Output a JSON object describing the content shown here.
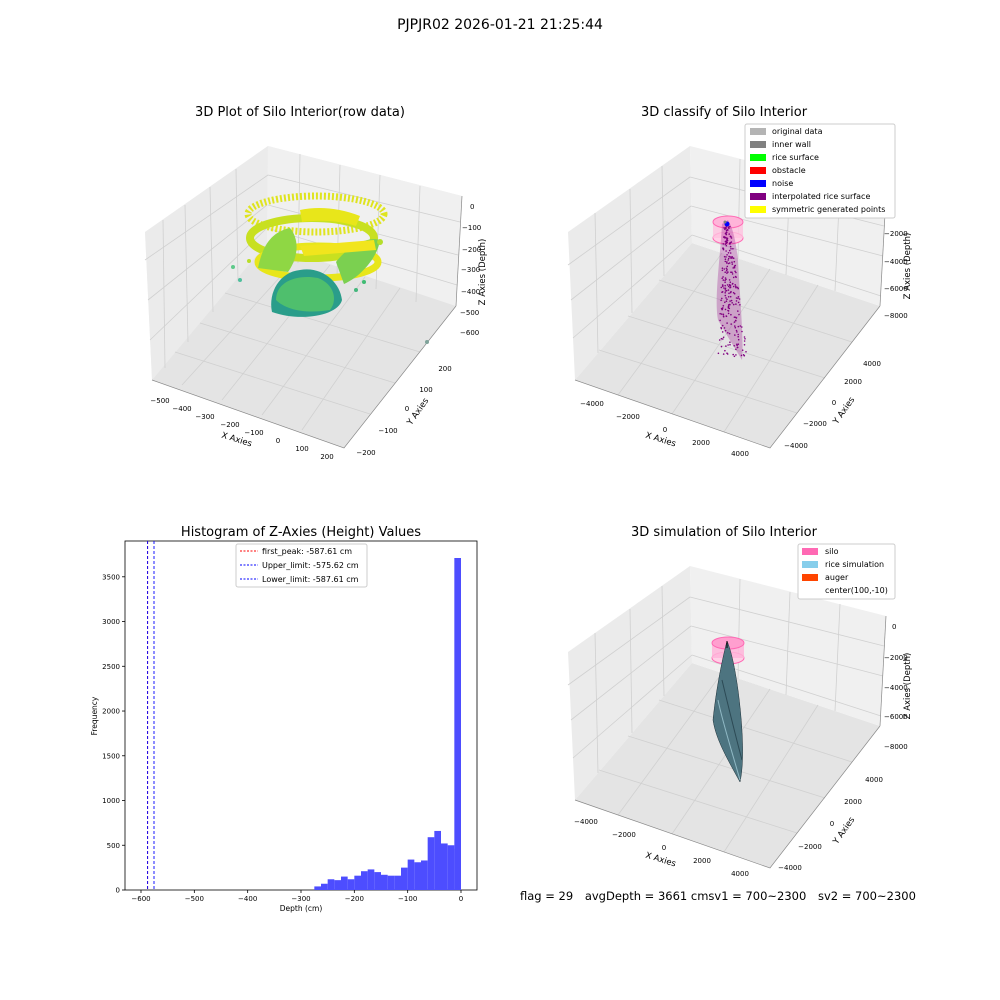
{
  "suptitle": "PJPJR02 2026-01-21 21:25:44",
  "footer": {
    "flag": "flag = 29",
    "avg": "avgDepth = 3661 cm",
    "sv1": "sv1 = 700~2300",
    "sv2": "sv2 = 700~2300"
  },
  "chart_data": [
    {
      "type": "scatter",
      "title": "3D Plot of Silo Interior(row data)",
      "xlabel": "X Axies",
      "ylabel": "Y Axies",
      "zlabel": "Z Axies (Depth)",
      "x_ticks": [
        "−500",
        "−400",
        "−300",
        "−200",
        "−100",
        "0",
        "100",
        "200"
      ],
      "y_ticks": [
        "−200",
        "−100",
        "0",
        "100",
        "200"
      ],
      "z_ticks": [
        "0",
        "−100",
        "−200",
        "−300",
        "−400",
        "−500",
        "−600"
      ],
      "colormap": "viridis",
      "grid": true
    },
    {
      "type": "scatter",
      "title": "3D classify of Silo Interior",
      "xlabel": "X Axies",
      "ylabel": "Y Axies",
      "zlabel": "Z Axies (Depth)",
      "x_ticks": [
        "−4000",
        "−2000",
        "0",
        "2000",
        "4000"
      ],
      "y_ticks": [
        "−4000",
        "−2000",
        "0",
        "2000",
        "4000"
      ],
      "z_ticks": [
        "−2000",
        "−4000",
        "−6000",
        "−8000"
      ],
      "legend_position": "top-right",
      "legend": [
        {
          "label": "original data",
          "color": "#b4b4b4"
        },
        {
          "label": "inner wall",
          "color": "#808080"
        },
        {
          "label": "rice surface",
          "color": "#00ff00"
        },
        {
          "label": "obstacle",
          "color": "#ff0000"
        },
        {
          "label": "noise",
          "color": "#0000ff"
        },
        {
          "label": "interpolated rice surface",
          "color": "#800080"
        },
        {
          "label": "symmetric generated points",
          "color": "#ffff00"
        }
      ],
      "grid": true
    },
    {
      "type": "bar",
      "title": "Histogram of Z-Axies (Height) Values",
      "xlabel": "Depth (cm)",
      "ylabel": "Frequency",
      "xlim": [
        -630,
        30
      ],
      "ylim": [
        0,
        3900
      ],
      "x_ticks": [
        -600,
        -500,
        -400,
        -300,
        -200,
        -100,
        0
      ],
      "y_ticks": [
        0,
        500,
        1000,
        1500,
        2000,
        2500,
        3000,
        3500
      ],
      "bin_width": 12.5,
      "bins_start": [
        -275,
        -262.5,
        -250,
        -237.5,
        -225,
        -212.5,
        -200,
        -187.5,
        -175,
        -162.5,
        -150,
        -137.5,
        -125,
        -112.5,
        -100,
        -87.5,
        -75,
        -62.5,
        -50,
        -37.5,
        -25,
        -12.5
      ],
      "values": [
        40,
        70,
        120,
        110,
        150,
        120,
        160,
        210,
        230,
        200,
        170,
        160,
        160,
        250,
        340,
        310,
        330,
        590,
        660,
        520,
        500,
        460
      ],
      "tall_bin": {
        "start": -12.5,
        "value": 3710
      },
      "bar_color": "#4d4dff",
      "lines": [
        {
          "label": "first_peak: -587.61 cm",
          "x": -587.61,
          "color": "#ff0000"
        },
        {
          "label": "Upper_limit: -575.62 cm",
          "x": -575.62,
          "color": "#0000ff"
        },
        {
          "label": "Lower_limit: -587.61 cm",
          "x": -587.61,
          "color": "#0000ff"
        }
      ],
      "legend_position": "top-center",
      "grid": false
    },
    {
      "type": "area",
      "title": "3D simulation of Silo Interior",
      "xlabel": "X Axies",
      "ylabel": "Y Axies",
      "zlabel": "Z Axies (Depth)",
      "x_ticks": [
        "−4000",
        "−2000",
        "0",
        "2000",
        "4000"
      ],
      "y_ticks": [
        "−4000",
        "−2000",
        "0",
        "2000",
        "4000"
      ],
      "z_ticks": [
        "0",
        "−2000",
        "−4000",
        "−6000",
        "−8000"
      ],
      "legend_position": "top-right",
      "legend": [
        {
          "label": "silo",
          "color": "#ff69b4"
        },
        {
          "label": "rice simulation",
          "color": "#87ceeb"
        },
        {
          "label": "auger",
          "color": "#ff4500"
        },
        {
          "label": "center(100,-10)",
          "color": ""
        }
      ],
      "grid": true
    }
  ]
}
